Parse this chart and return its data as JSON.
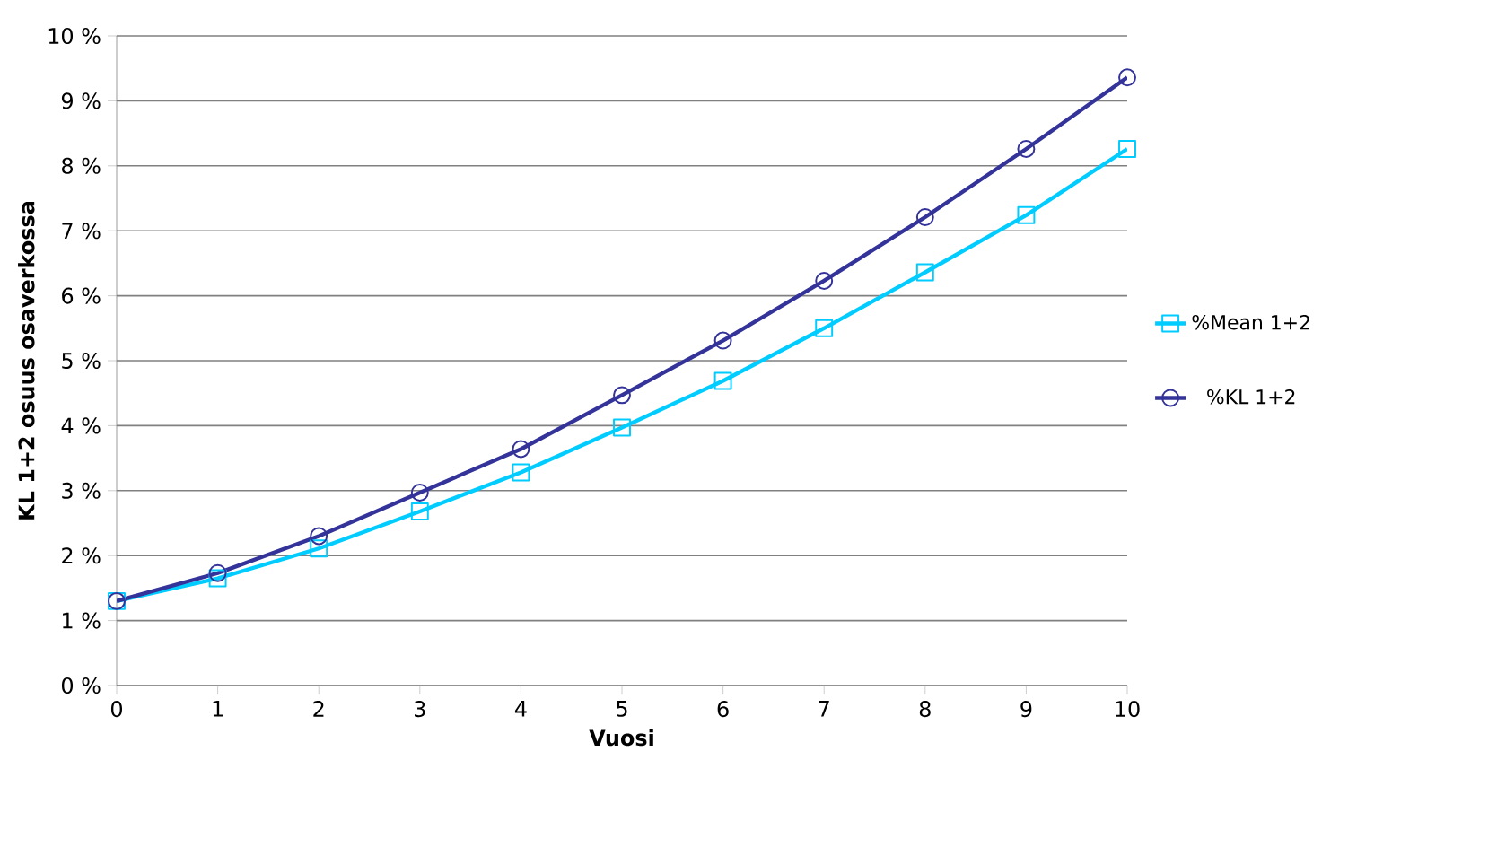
{
  "chart_data": {
    "type": "line",
    "xlabel": "Vuosi",
    "ylabel": "KL 1+2 osuus osaverkossa",
    "x": [
      0,
      1,
      2,
      3,
      4,
      5,
      6,
      7,
      8,
      9,
      10
    ],
    "series": [
      {
        "name": "%Mean 1+2",
        "color": "#00ccff",
        "marker": "square",
        "values": [
          1.3,
          1.65,
          2.11,
          2.68,
          3.28,
          3.97,
          4.69,
          5.5,
          6.36,
          7.24,
          8.26
        ]
      },
      {
        "name": "%KL 1+2",
        "color": "#333399",
        "marker": "circle",
        "values": [
          1.3,
          1.73,
          2.3,
          2.97,
          3.64,
          4.47,
          5.31,
          6.23,
          7.21,
          8.26,
          9.36
        ]
      }
    ],
    "xlim": [
      0,
      10
    ],
    "xticks": [
      0,
      1,
      2,
      3,
      4,
      5,
      6,
      7,
      8,
      9,
      10
    ],
    "ylim": [
      0,
      10
    ],
    "yticks": [
      {
        "value": 0,
        "label": "0 %"
      },
      {
        "value": 1,
        "label": "1 %"
      },
      {
        "value": 2,
        "label": "2 %"
      },
      {
        "value": 3,
        "label": "3 %"
      },
      {
        "value": 4,
        "label": "4 %"
      },
      {
        "value": 5,
        "label": "5 %"
      },
      {
        "value": 6,
        "label": "6 %"
      },
      {
        "value": 7,
        "label": "7 %"
      },
      {
        "value": 8,
        "label": "8 %"
      },
      {
        "value": 9,
        "label": "9 %"
      },
      {
        "value": 10,
        "label": "10 %"
      }
    ],
    "grid": "y",
    "legend": "right",
    "line_style": "solid"
  }
}
